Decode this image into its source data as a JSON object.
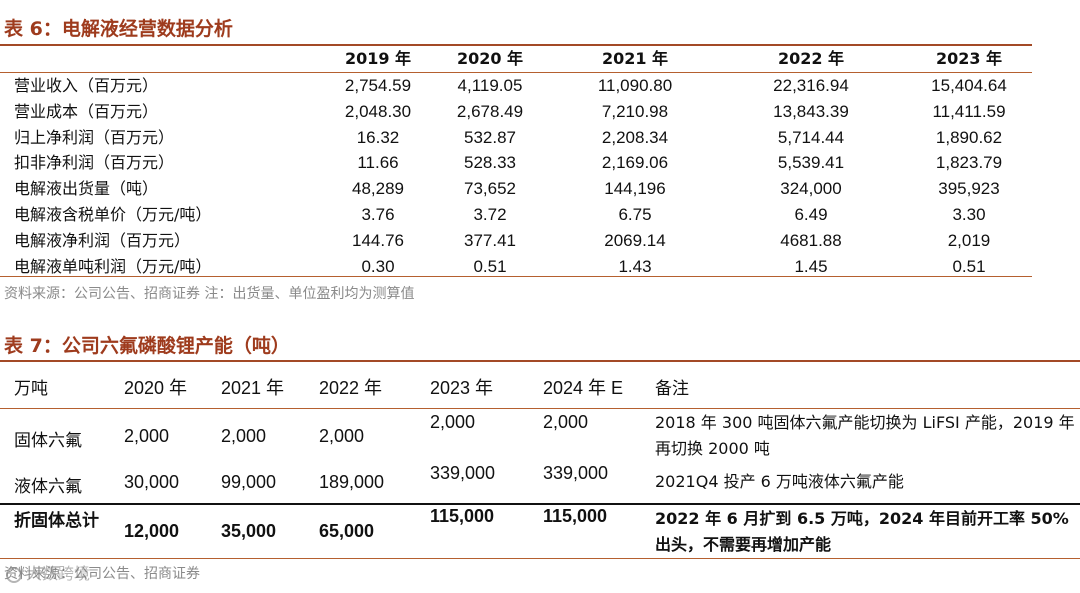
{
  "table6": {
    "title": "表 6：电解液经营数据分析",
    "columns": [
      "2019 年",
      "2020 年",
      "2021 年",
      "2022 年",
      "2023 年"
    ],
    "rows": [
      {
        "label": "营业收入（百万元）",
        "values": [
          "2,754.59",
          "4,119.05",
          "11,090.80",
          "22,316.94",
          "15,404.64"
        ]
      },
      {
        "label": "营业成本（百万元）",
        "values": [
          "2,048.30",
          "2,678.49",
          "7,210.98",
          "13,843.39",
          "11,411.59"
        ]
      },
      {
        "label": "归上净利润（百万元）",
        "values": [
          "16.32",
          "532.87",
          "2,208.34",
          "5,714.44",
          "1,890.62"
        ]
      },
      {
        "label": "扣非净利润（百万元）",
        "values": [
          "11.66",
          "528.33",
          "2,169.06",
          "5,539.41",
          "1,823.79"
        ]
      },
      {
        "label": "电解液出货量（吨）",
        "values": [
          "48,289",
          "73,652",
          "144,196",
          "324,000",
          "395,923"
        ]
      },
      {
        "label": "电解液含税单价（万元/吨）",
        "values": [
          "3.76",
          "3.72",
          "6.75",
          "6.49",
          "3.30"
        ]
      },
      {
        "label": "电解液净利润（百万元）",
        "values": [
          "144.76",
          "377.41",
          "2069.14",
          "4681.88",
          "2,019"
        ]
      },
      {
        "label": "电解液单吨利润（万元/吨）",
        "values": [
          "0.30",
          "0.51",
          "1.43",
          "1.45",
          "0.51"
        ]
      }
    ],
    "source": "资料来源：公司公告、招商证券 注：出货量、单位盈利均为测算值"
  },
  "table7": {
    "title": "表 7：公司六氟磷酸锂产能（吨）",
    "headers": [
      "万吨",
      "2020 年",
      "2021 年",
      "2022 年",
      "2023 年",
      "2024 年 E",
      "备注"
    ],
    "rows": [
      {
        "label": "固体六氟",
        "values": [
          "2,000",
          "2,000",
          "2,000",
          "2,000",
          "2,000"
        ],
        "remark": "2018 年 300 吨固体六氟产能切换为 LiFSI 产能，2019 年再切换 2000 吨"
      },
      {
        "label": "液体六氟",
        "values": [
          "30,000",
          "99,000",
          "189,000",
          "339,000",
          "339,000"
        ],
        "remark": "2021Q4 投产 6 万吨液体六氟产能"
      },
      {
        "label": "折固体总计",
        "values": [
          "12,000",
          "35,000",
          "65,000",
          "115,000",
          "115,000"
        ],
        "remark": "2022 年 6 月扩到 6.5 万吨，2024 年目前开工率 50%出头，不需要再增加产能"
      }
    ],
    "source": "资料来源：公司公告、招商证券"
  },
  "watermark": "大数跨境",
  "colors": {
    "title": "#9e3b1d",
    "rule": "#a34a26",
    "note": "#8a8a8a"
  }
}
